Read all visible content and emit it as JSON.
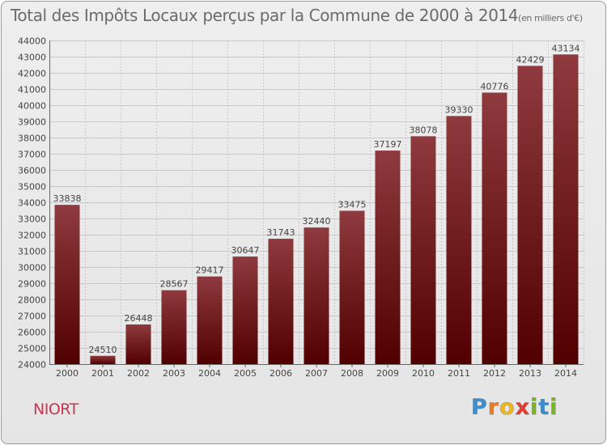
{
  "title": "Total des Impôts Locaux perçus par la Commune de 2000 à 2014",
  "unit_note": "(en milliers d'€)",
  "commune": "NIORT",
  "logo": {
    "letters": [
      "P",
      "r",
      "o",
      "x",
      "i",
      "t",
      "i"
    ],
    "colors": [
      "#3a8fd1",
      "#f07c1a",
      "#f0b61a",
      "#e63b2e",
      "#7ab51d",
      "#3a8fd1",
      "#7ab51d"
    ]
  },
  "colors": {
    "bar_top": "#8e3a3e",
    "bar_bottom": "#510000",
    "grid": "#c8c8c8",
    "text": "#444444"
  },
  "chart_data": {
    "type": "bar",
    "title": "Total des Impôts Locaux perçus par la Commune de 2000 à 2014",
    "ylabel": "en milliers d'€",
    "xlabel": "",
    "categories": [
      "2000",
      "2001",
      "2002",
      "2003",
      "2004",
      "2005",
      "2006",
      "2007",
      "2008",
      "2009",
      "2010",
      "2011",
      "2012",
      "2013",
      "2014"
    ],
    "values": [
      33838,
      24510,
      26448,
      28567,
      29417,
      30647,
      31743,
      32440,
      33475,
      37197,
      38078,
      39330,
      40776,
      42429,
      43134
    ],
    "ylim": [
      24000,
      44000
    ],
    "yticks": [
      24000,
      25000,
      26000,
      27000,
      28000,
      29000,
      30000,
      31000,
      32000,
      33000,
      34000,
      35000,
      36000,
      37000,
      38000,
      39000,
      40000,
      41000,
      42000,
      43000,
      44000
    ],
    "grid": true
  }
}
